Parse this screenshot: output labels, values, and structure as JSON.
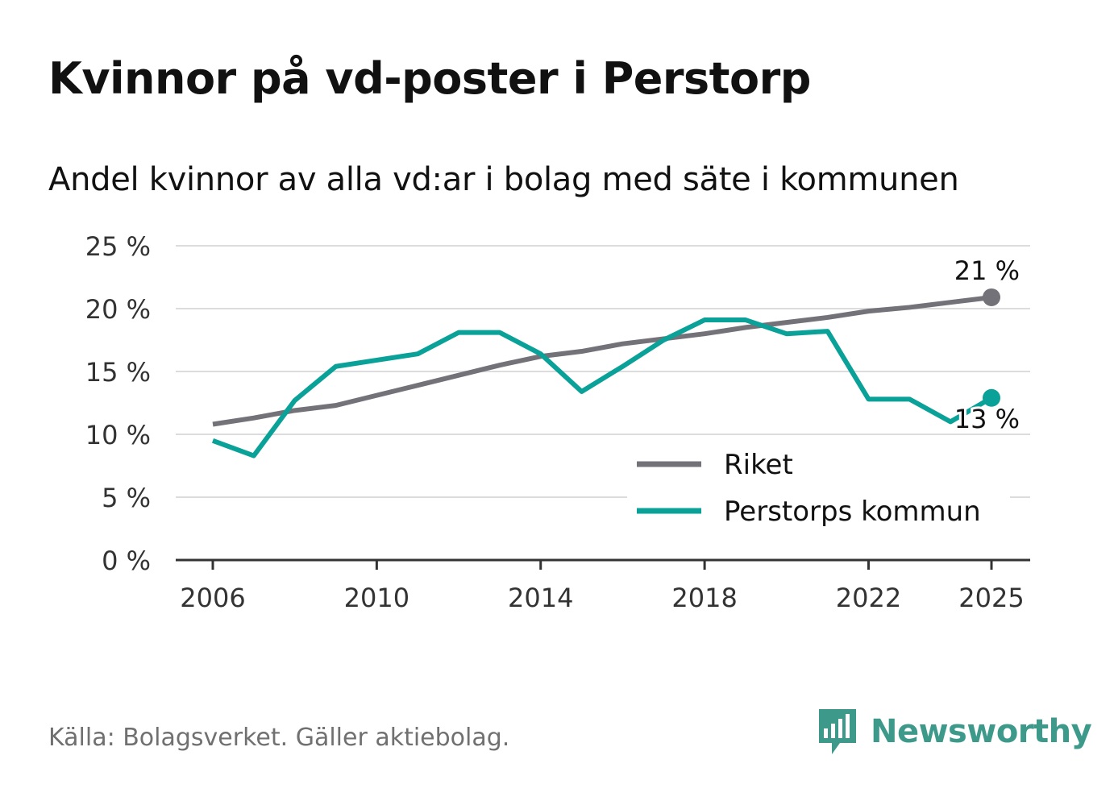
{
  "title": "Kvinnor på vd-poster i Perstorp",
  "subtitle": "Andel kvinnor av alla vd:ar i bolag med säte i kommunen",
  "source": "Källa: Bolagsverket. Gäller aktiebolag.",
  "brand": {
    "name": "Newsworthy",
    "icon": "newsworthy-logo-icon",
    "color": "#3d9a8b"
  },
  "chart_data": {
    "type": "line",
    "title": "Kvinnor på vd-poster i Perstorp",
    "subtitle": "Andel kvinnor av alla vd:ar i bolag med säte i kommunen",
    "xlabel": "",
    "ylabel": "",
    "x": [
      2006,
      2007,
      2008,
      2009,
      2010,
      2011,
      2012,
      2013,
      2014,
      2015,
      2016,
      2017,
      2018,
      2019,
      2020,
      2021,
      2022,
      2023,
      2024,
      2025
    ],
    "xlim": [
      2006,
      2025
    ],
    "x_ticks": [
      2006,
      2010,
      2014,
      2018,
      2022,
      2025
    ],
    "x_tick_labels": [
      "2006",
      "2010",
      "2014",
      "2018",
      "2022",
      "2025"
    ],
    "ylim": [
      0,
      25
    ],
    "y_ticks": [
      0,
      5,
      10,
      15,
      20,
      25
    ],
    "y_tick_labels": [
      "0 %",
      "5 %",
      "10 %",
      "15 %",
      "20 %",
      "25 %"
    ],
    "grid": true,
    "legend_position": "bottom-right",
    "series": [
      {
        "name": "Riket",
        "color": "#737278",
        "values": [
          10.8,
          11.3,
          11.9,
          12.3,
          13.1,
          13.9,
          14.7,
          15.5,
          16.2,
          16.6,
          17.2,
          17.6,
          18.0,
          18.5,
          18.9,
          19.3,
          19.8,
          20.1,
          20.5,
          20.9
        ],
        "end_label": "21 %"
      },
      {
        "name": "Perstorps kommun",
        "color": "#0aa199",
        "values": [
          9.5,
          8.3,
          12.7,
          15.4,
          15.9,
          16.4,
          18.1,
          18.1,
          16.4,
          13.4,
          15.4,
          17.5,
          19.1,
          19.1,
          18.0,
          18.2,
          12.8,
          12.8,
          11.0,
          12.9
        ],
        "end_label": "13 %"
      }
    ]
  }
}
